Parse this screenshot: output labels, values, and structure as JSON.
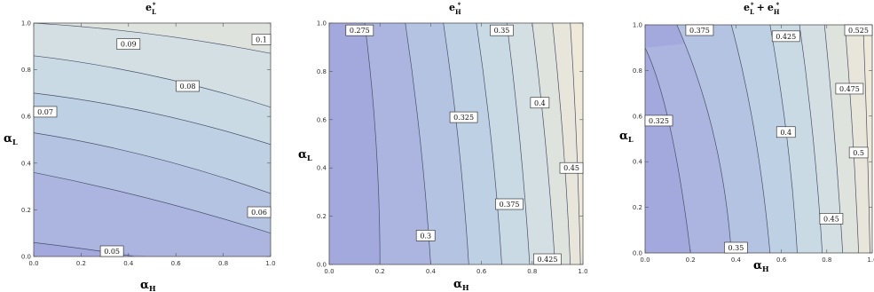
{
  "chart_data": [
    {
      "type": "contour",
      "title": {
        "base": "e",
        "sub": "L",
        "sup": "*"
      },
      "xlabel": {
        "base": "α",
        "sub": "H"
      },
      "ylabel": {
        "base": "α",
        "sub": "L"
      },
      "xlim": [
        0,
        1
      ],
      "ylim": [
        0,
        1
      ],
      "xticks": [
        "0.0",
        "0.2",
        "0.4",
        "0.6",
        "0.8",
        "1.0"
      ],
      "yticks": [
        "0.0",
        "0.2",
        "0.4",
        "0.6",
        "0.8",
        "1.0"
      ],
      "contour_levels": [
        "0.05",
        "0.06",
        "0.07",
        "0.08",
        "0.09",
        "0.1"
      ],
      "labels": [
        {
          "text": "0.09",
          "x": 0.4,
          "y": 0.91
        },
        {
          "text": "0.1",
          "x": 0.97,
          "y": 0.93
        },
        {
          "text": "0.08",
          "x": 0.65,
          "y": 0.73
        },
        {
          "text": "0.07",
          "x": 0.04,
          "y": 0.62
        },
        {
          "text": "0.06",
          "x": 0.96,
          "y": 0.19
        },
        {
          "text": "0.05",
          "x": 0.33,
          "y": 0.0
        }
      ]
    },
    {
      "type": "contour",
      "title": {
        "base": "e",
        "sub": "H",
        "sup": "*"
      },
      "xlabel": {
        "base": "α",
        "sub": "H"
      },
      "ylabel": {
        "base": "α",
        "sub": "L"
      },
      "xlim": [
        0,
        1
      ],
      "ylim": [
        0,
        1
      ],
      "xticks": [
        "0.0",
        "0.2",
        "0.4",
        "0.6",
        "0.8",
        "1.0"
      ],
      "yticks": [
        "0.0",
        "0.2",
        "0.4",
        "0.6",
        "0.8",
        "1.0"
      ],
      "contour_levels": [
        "0.275",
        "0.3",
        "0.325",
        "0.35",
        "0.375",
        "0.4",
        "0.425",
        "0.45"
      ],
      "labels": [
        {
          "text": "0.275",
          "x": 0.12,
          "y": 0.97
        },
        {
          "text": "0.35",
          "x": 0.68,
          "y": 0.97
        },
        {
          "text": "0.325",
          "x": 0.53,
          "y": 0.61
        },
        {
          "text": "0.4",
          "x": 0.83,
          "y": 0.67
        },
        {
          "text": "0.45",
          "x": 0.97,
          "y": 0.4
        },
        {
          "text": "0.375",
          "x": 0.71,
          "y": 0.25
        },
        {
          "text": "0.3",
          "x": 0.38,
          "y": 0.12
        },
        {
          "text": "0.425",
          "x": 0.86,
          "y": 0.0
        }
      ]
    },
    {
      "type": "contour",
      "title": {
        "base": "e",
        "sub": "L",
        "sup": "*",
        "plus": "+",
        "base2": "e",
        "sub2": "H",
        "sup2": "*"
      },
      "xlabel": {
        "base": "α",
        "sub": "H"
      },
      "ylabel": {
        "base": "α",
        "sub": "L"
      },
      "xlim": [
        0,
        1
      ],
      "ylim": [
        0,
        1
      ],
      "xticks": [
        "0.0",
        "0.2",
        "0.4",
        "0.6",
        "0.8",
        "1.0"
      ],
      "yticks": [
        "0.0",
        "0.2",
        "0.4",
        "0.6",
        "0.8",
        "1.0"
      ],
      "contour_levels": [
        "0.325",
        "0.35",
        "0.375",
        "0.4",
        "0.425",
        "0.45",
        "0.475",
        "0.5",
        "0.525"
      ],
      "labels": [
        {
          "text": "0.375",
          "x": 0.24,
          "y": 0.99
        },
        {
          "text": "0.425",
          "x": 0.62,
          "y": 0.95
        },
        {
          "text": "0.525",
          "x": 0.98,
          "y": 0.99
        },
        {
          "text": "0.475",
          "x": 0.9,
          "y": 0.72
        },
        {
          "text": "0.325",
          "x": 0.0,
          "y": 0.58
        },
        {
          "text": "0.4",
          "x": 0.62,
          "y": 0.53
        },
        {
          "text": "0.5",
          "x": 0.94,
          "y": 0.44
        },
        {
          "text": "0.45",
          "x": 0.82,
          "y": 0.15
        },
        {
          "text": "0.35",
          "x": 0.4,
          "y": 0.02
        }
      ]
    }
  ]
}
